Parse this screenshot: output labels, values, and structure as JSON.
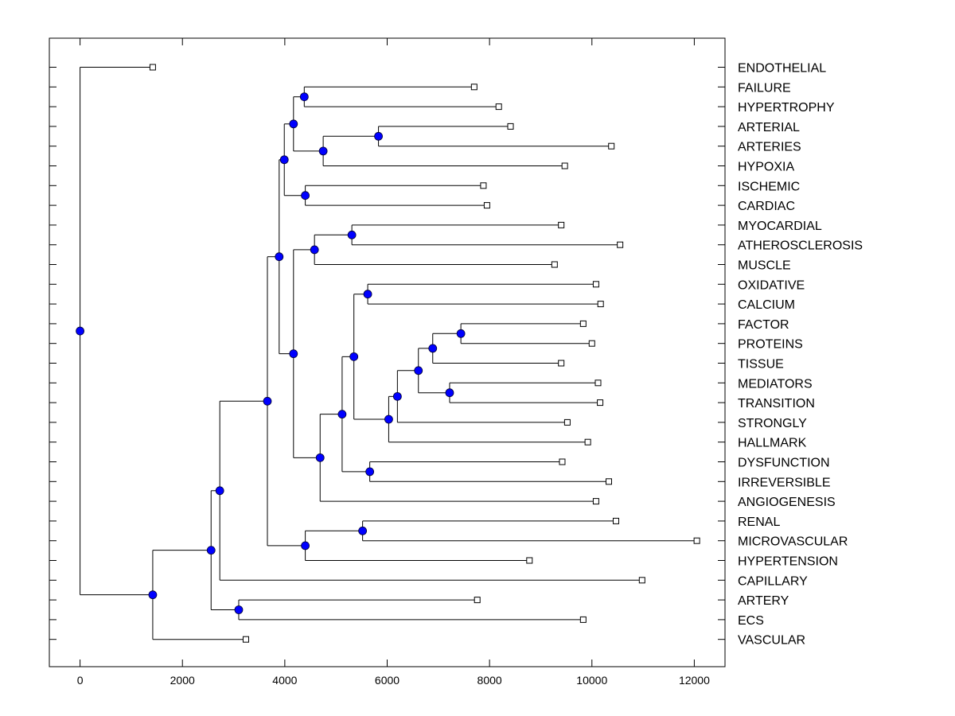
{
  "chart_data": {
    "type": "dendrogram",
    "title": "",
    "xlabel": "",
    "ylabel": "",
    "xlim": [
      -600,
      12600
    ],
    "xticks": [
      0,
      2000,
      4000,
      6000,
      8000,
      10000,
      12000
    ],
    "xtick_labels": [
      "0",
      "2000",
      "4000",
      "6000",
      "8000",
      "10000",
      "12000"
    ],
    "colors": {
      "node_fill": "#0000ff",
      "line": "#000000",
      "leaf_fill": "#ffffff"
    },
    "leaves": [
      {
        "name": "ENDOTHELIAL",
        "value": 1420
      },
      {
        "name": "FAILURE",
        "value": 7700
      },
      {
        "name": "HYPERTROPHY",
        "value": 8180
      },
      {
        "name": "ARTERIAL",
        "value": 8410
      },
      {
        "name": "ARTERIES",
        "value": 10380
      },
      {
        "name": "HYPOXIA",
        "value": 9470
      },
      {
        "name": "ISCHEMIC",
        "value": 7880
      },
      {
        "name": "CARDIAC",
        "value": 7950
      },
      {
        "name": "MYOCARDIAL",
        "value": 9400
      },
      {
        "name": "ATHEROSCLEROSIS",
        "value": 10550
      },
      {
        "name": "MUSCLE",
        "value": 9270
      },
      {
        "name": "OXIDATIVE",
        "value": 10080
      },
      {
        "name": "CALCIUM",
        "value": 10170
      },
      {
        "name": "FACTOR",
        "value": 9830
      },
      {
        "name": "PROTEINS",
        "value": 10000
      },
      {
        "name": "TISSUE",
        "value": 9400
      },
      {
        "name": "MEDIATORS",
        "value": 10120
      },
      {
        "name": "TRANSITION",
        "value": 10160
      },
      {
        "name": "STRONGLY",
        "value": 9520
      },
      {
        "name": "HALLMARK",
        "value": 9920
      },
      {
        "name": "DYSFUNCTION",
        "value": 9420
      },
      {
        "name": "IRREVERSIBLE",
        "value": 10330
      },
      {
        "name": "ANGIOGENESIS",
        "value": 10080
      },
      {
        "name": "RENAL",
        "value": 10470
      },
      {
        "name": "MICROVASCULAR",
        "value": 12050
      },
      {
        "name": "HYPERTENSION",
        "value": 8780
      },
      {
        "name": "CAPILLARY",
        "value": 10980
      },
      {
        "name": "ARTERY",
        "value": 7760
      },
      {
        "name": "ECS",
        "value": 9830
      },
      {
        "name": "VASCULAR",
        "value": 3240
      }
    ],
    "nodes": [
      {
        "id": "n1",
        "value": 4380,
        "children": [
          "L1",
          "L2"
        ]
      },
      {
        "id": "n2",
        "value": 5830,
        "children": [
          "L3",
          "L4"
        ]
      },
      {
        "id": "n3",
        "value": 4750,
        "children": [
          "n2",
          "L5"
        ]
      },
      {
        "id": "n4",
        "value": 4170,
        "children": [
          "n1",
          "n3"
        ]
      },
      {
        "id": "n5",
        "value": 4400,
        "children": [
          "L6",
          "L7"
        ]
      },
      {
        "id": "n6",
        "value": 3990,
        "children": [
          "n4",
          "n5"
        ]
      },
      {
        "id": "n7",
        "value": 5310,
        "children": [
          "L8",
          "L9"
        ]
      },
      {
        "id": "n8",
        "value": 4580,
        "children": [
          "n7",
          "L10"
        ]
      },
      {
        "id": "n9",
        "value": 5620,
        "children": [
          "L11",
          "L12"
        ]
      },
      {
        "id": "n10",
        "value": 7440,
        "children": [
          "L13",
          "L14"
        ]
      },
      {
        "id": "n11",
        "value": 6890,
        "children": [
          "n10",
          "L15"
        ]
      },
      {
        "id": "n12",
        "value": 7220,
        "children": [
          "L16",
          "L17"
        ]
      },
      {
        "id": "n13",
        "value": 6610,
        "children": [
          "n11",
          "n12"
        ]
      },
      {
        "id": "n14",
        "value": 6200,
        "children": [
          "n13",
          "L18"
        ]
      },
      {
        "id": "n15",
        "value": 6030,
        "children": [
          "n14",
          "L19"
        ]
      },
      {
        "id": "n16",
        "value": 5350,
        "children": [
          "n9",
          "n15"
        ]
      },
      {
        "id": "n17",
        "value": 5660,
        "children": [
          "L20",
          "L21"
        ]
      },
      {
        "id": "n18",
        "value": 5120,
        "children": [
          "n16",
          "n17"
        ]
      },
      {
        "id": "n19",
        "value": 4690,
        "children": [
          "n18",
          "L22"
        ]
      },
      {
        "id": "n20",
        "value": 4170,
        "children": [
          "n8",
          "n19"
        ]
      },
      {
        "id": "n21",
        "value": 3890,
        "children": [
          "n6",
          "n20"
        ]
      },
      {
        "id": "n22",
        "value": 5520,
        "children": [
          "L23",
          "L24"
        ]
      },
      {
        "id": "n23",
        "value": 4400,
        "children": [
          "n22",
          "L25"
        ]
      },
      {
        "id": "n24",
        "value": 3660,
        "children": [
          "n21",
          "n23"
        ]
      },
      {
        "id": "n25",
        "value": 2730,
        "children": [
          "n24",
          "L26"
        ]
      },
      {
        "id": "n26",
        "value": 3100,
        "children": [
          "L27",
          "L28"
        ]
      },
      {
        "id": "n27",
        "value": 2560,
        "children": [
          "n25",
          "n26"
        ]
      },
      {
        "id": "n28",
        "value": 1420,
        "children": [
          "n27",
          "L29"
        ]
      },
      {
        "id": "n29",
        "value": 0,
        "children": [
          "L0",
          "n28"
        ]
      }
    ]
  }
}
